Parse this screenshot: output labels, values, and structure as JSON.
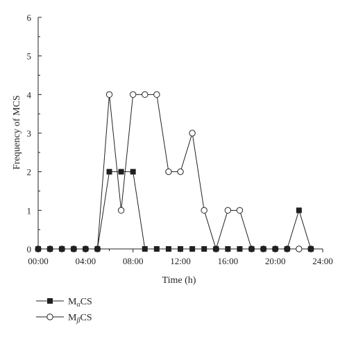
{
  "chart_data": {
    "type": "line",
    "xlabel": "Time (h)",
    "ylabel": "Frequency of MCS",
    "xlim": [
      0,
      24
    ],
    "ylim": [
      0,
      6
    ],
    "x_ticks": [
      "00:00",
      "04:00",
      "08:00",
      "12:00",
      "16:00",
      "20:00",
      "24:00"
    ],
    "y_ticks": [
      "0",
      "1",
      "2",
      "3",
      "4",
      "5",
      "6"
    ],
    "x": [
      0,
      1,
      2,
      3,
      4,
      5,
      6,
      7,
      8,
      9,
      10,
      11,
      12,
      13,
      14,
      15,
      16,
      17,
      18,
      19,
      20,
      21,
      22,
      23
    ],
    "series": [
      {
        "name_main": "M",
        "name_sub": "α",
        "name_tail": "CS",
        "marker": "filled-square",
        "values": [
          0,
          0,
          0,
          0,
          0,
          0,
          2,
          2,
          2,
          0,
          0,
          0,
          0,
          0,
          0,
          0,
          0,
          0,
          0,
          0,
          0,
          0,
          1,
          0
        ]
      },
      {
        "name_main": "M",
        "name_sub": "β",
        "name_tail": "CS",
        "marker": "open-circle",
        "values": [
          0,
          0,
          0,
          0,
          0,
          0,
          4,
          1,
          4,
          4,
          4,
          2,
          2,
          3,
          1,
          0,
          1,
          1,
          0,
          0,
          0,
          0,
          0,
          0
        ]
      }
    ],
    "grid": false,
    "legend_position": "bottom-left",
    "colors": {
      "line": "#231f20",
      "filled_marker": "#231f20",
      "open_marker_fill": "#ffffff"
    }
  }
}
